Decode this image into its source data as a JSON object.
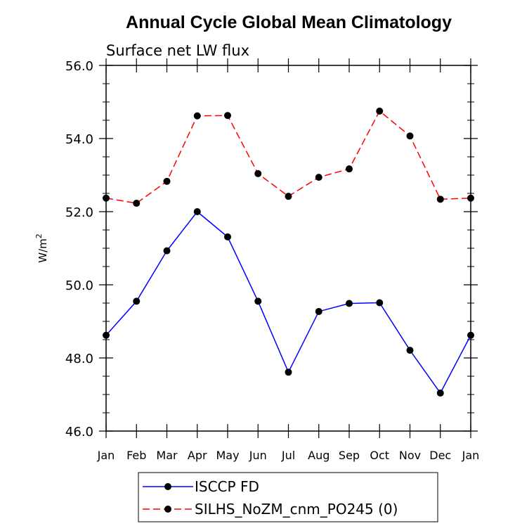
{
  "chart_data": {
    "type": "line",
    "title": "Annual Cycle Global Mean Climatology",
    "subtitle": "Surface net LW flux",
    "xlabel": "",
    "ylabel": "W/m",
    "ylabel_superscript": "2",
    "categories": [
      "Jan",
      "Feb",
      "Mar",
      "Apr",
      "May",
      "Jun",
      "Jul",
      "Aug",
      "Sep",
      "Oct",
      "Nov",
      "Dec",
      "Jan"
    ],
    "ylim": [
      46.0,
      56.0
    ],
    "yticks": [
      "46.0",
      "48.0",
      "50.0",
      "52.0",
      "54.0",
      "56.0"
    ],
    "grid": false,
    "legend_position": "bottom",
    "series": [
      {
        "name": "ISCCP FD",
        "color": "#0000ff",
        "dash": "solid",
        "marker": "filled-circle",
        "values": [
          48.62,
          49.55,
          50.93,
          52.0,
          51.31,
          49.55,
          47.61,
          49.27,
          49.49,
          49.51,
          48.21,
          47.04,
          48.62
        ]
      },
      {
        "name": "SILHS_NoZM_cnm_PO245 (0)",
        "color": "#ff0000",
        "dash": "dashed",
        "marker": "filled-circle",
        "values": [
          52.37,
          52.23,
          52.83,
          54.62,
          54.63,
          53.04,
          52.42,
          52.94,
          53.17,
          54.75,
          54.07,
          52.34,
          52.37
        ]
      }
    ]
  }
}
